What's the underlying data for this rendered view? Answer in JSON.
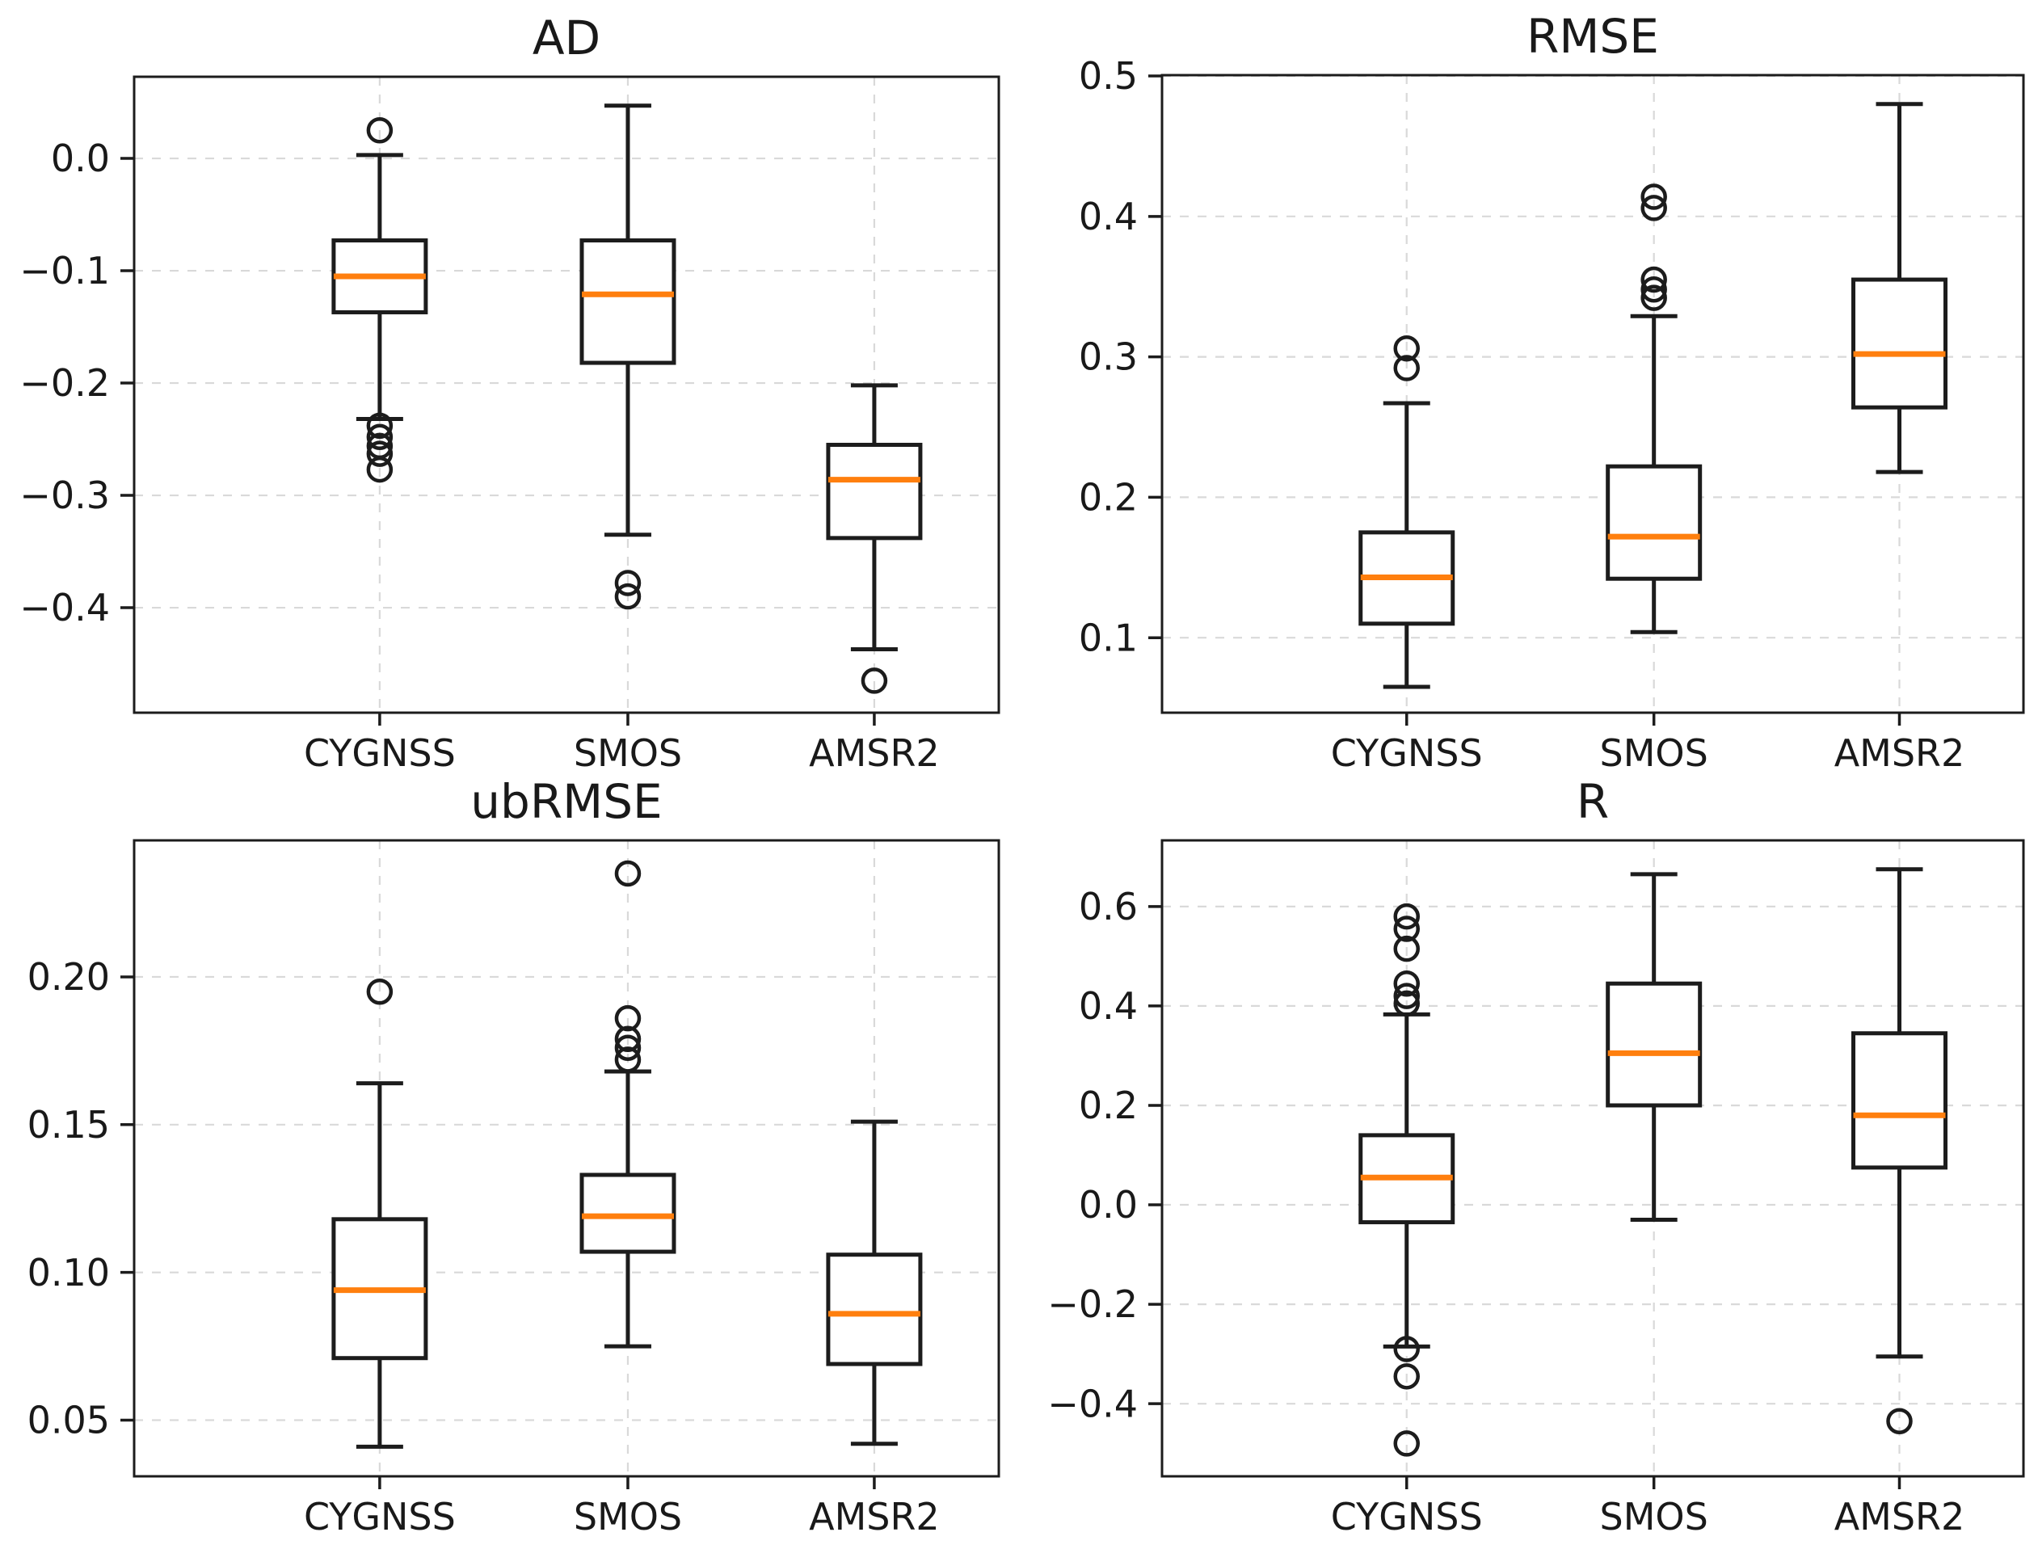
{
  "style": {
    "background": "#ffffff",
    "line_color": "#1c1c1c",
    "median_color": "#ff7f0e",
    "grid_color": "#d9d9d9",
    "box_fill": "#ffffff"
  },
  "chart_data": [
    {
      "id": "ad",
      "type": "boxplot",
      "title": "AD",
      "categories": [
        "CYGNSS",
        "SMOS",
        "AMSR2"
      ],
      "ylim": [
        -0.4935,
        0.0727
      ],
      "grid": true,
      "yticks": [
        {
          "label": "0.0",
          "value": 0.0
        },
        {
          "label": "−0.1",
          "value": -0.1
        },
        {
          "label": "−0.2",
          "value": -0.2
        },
        {
          "label": "−0.3",
          "value": -0.3
        },
        {
          "label": "−0.4",
          "value": -0.4
        }
      ],
      "series": [
        {
          "name": "CYGNSS",
          "whislo": -0.232,
          "q1": -0.137,
          "med": -0.105,
          "q3": -0.073,
          "whishi": 0.003,
          "outliers": [
            0.025,
            -0.238,
            -0.248,
            -0.256,
            -0.263,
            -0.277
          ]
        },
        {
          "name": "SMOS",
          "whislo": -0.335,
          "q1": -0.182,
          "med": -0.121,
          "q3": -0.073,
          "whishi": 0.047,
          "outliers": [
            -0.378,
            -0.39
          ]
        },
        {
          "name": "AMSR2",
          "whislo": -0.437,
          "q1": -0.338,
          "med": -0.286,
          "q3": -0.255,
          "whishi": -0.202,
          "outliers": [
            -0.465
          ]
        }
      ]
    },
    {
      "id": "rmse",
      "type": "boxplot",
      "title": "RMSE",
      "categories": [
        "CYGNSS",
        "SMOS",
        "AMSR2"
      ],
      "ylim": [
        0.0466,
        0.5006
      ],
      "grid": true,
      "yticks": [
        {
          "label": "0.5",
          "value": 0.5
        },
        {
          "label": "0.4",
          "value": 0.4
        },
        {
          "label": "0.3",
          "value": 0.3
        },
        {
          "label": "0.2",
          "value": 0.2
        },
        {
          "label": "0.1",
          "value": 0.1
        }
      ],
      "series": [
        {
          "name": "CYGNSS",
          "whislo": 0.065,
          "q1": 0.11,
          "med": 0.143,
          "q3": 0.175,
          "whishi": 0.267,
          "outliers": [
            0.292,
            0.306
          ]
        },
        {
          "name": "SMOS",
          "whislo": 0.104,
          "q1": 0.142,
          "med": 0.172,
          "q3": 0.222,
          "whishi": 0.329,
          "outliers": [
            0.342,
            0.348,
            0.355,
            0.406,
            0.414
          ]
        },
        {
          "name": "AMSR2",
          "whislo": 0.218,
          "q1": 0.264,
          "med": 0.302,
          "q3": 0.355,
          "whishi": 0.48,
          "outliers": []
        }
      ]
    },
    {
      "id": "ubrmse",
      "type": "boxplot",
      "title": "ubRMSE",
      "categories": [
        "CYGNSS",
        "SMOS",
        "AMSR2"
      ],
      "ylim": [
        0.031,
        0.2462
      ],
      "grid": true,
      "yticks": [
        {
          "label": "0.20",
          "value": 0.2
        },
        {
          "label": "0.15",
          "value": 0.15
        },
        {
          "label": "0.10",
          "value": 0.1
        },
        {
          "label": "0.05",
          "value": 0.05
        }
      ],
      "series": [
        {
          "name": "CYGNSS",
          "whislo": 0.041,
          "q1": 0.071,
          "med": 0.094,
          "q3": 0.118,
          "whishi": 0.164,
          "outliers": [
            0.195
          ]
        },
        {
          "name": "SMOS",
          "whislo": 0.075,
          "q1": 0.107,
          "med": 0.119,
          "q3": 0.133,
          "whishi": 0.168,
          "outliers": [
            0.172,
            0.176,
            0.179,
            0.186,
            0.235
          ]
        },
        {
          "name": "AMSR2",
          "whislo": 0.042,
          "q1": 0.069,
          "med": 0.086,
          "q3": 0.106,
          "whishi": 0.151,
          "outliers": []
        }
      ]
    },
    {
      "id": "r",
      "type": "boxplot",
      "title": "R",
      "categories": [
        "CYGNSS",
        "SMOS",
        "AMSR2"
      ],
      "ylim": [
        -0.546,
        0.733
      ],
      "grid": true,
      "yticks": [
        {
          "label": "0.6",
          "value": 0.6
        },
        {
          "label": "0.4",
          "value": 0.4
        },
        {
          "label": "0.2",
          "value": 0.2
        },
        {
          "label": "0.0",
          "value": 0.0
        },
        {
          "label": "−0.2",
          "value": -0.2
        },
        {
          "label": "−0.4",
          "value": -0.4
        }
      ],
      "series": [
        {
          "name": "CYGNSS",
          "whislo": -0.285,
          "q1": -0.035,
          "med": 0.055,
          "q3": 0.14,
          "whishi": 0.383,
          "outliers": [
            0.58,
            0.555,
            0.515,
            0.445,
            0.42,
            0.405,
            -0.29,
            -0.345,
            -0.48
          ]
        },
        {
          "name": "SMOS",
          "whislo": -0.03,
          "q1": 0.2,
          "med": 0.305,
          "q3": 0.445,
          "whishi": 0.665,
          "outliers": []
        },
        {
          "name": "AMSR2",
          "whislo": -0.305,
          "q1": 0.075,
          "med": 0.18,
          "q3": 0.345,
          "whishi": 0.675,
          "outliers": [
            -0.435
          ]
        }
      ]
    }
  ]
}
